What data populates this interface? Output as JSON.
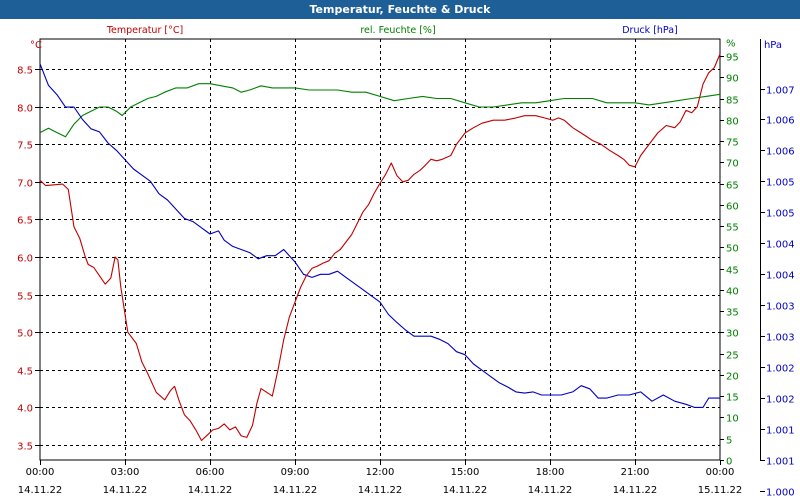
{
  "title": "Temperatur, Feuchte & Druck",
  "colors": {
    "temperature": "#c00000",
    "humidity": "#008000",
    "pressure": "#0000c0",
    "title_bg": "#1f5f97"
  },
  "chart_data": {
    "type": "line",
    "title": "Temperatur, Feuchte & Druck",
    "x_ticks": [
      {
        "time": "00:00",
        "date": "14.11.22",
        "h": 0
      },
      {
        "time": "03:00",
        "date": "14.11.22",
        "h": 3
      },
      {
        "time": "06:00",
        "date": "14.11.22",
        "h": 6
      },
      {
        "time": "09:00",
        "date": "14.11.22",
        "h": 9
      },
      {
        "time": "12:00",
        "date": "14.11.22",
        "h": 12
      },
      {
        "time": "15:00",
        "date": "14.11.22",
        "h": 15
      },
      {
        "time": "18:00",
        "date": "14.11.22",
        "h": 18
      },
      {
        "time": "21:00",
        "date": "14.11.22",
        "h": 21
      },
      {
        "time": "00:00",
        "date": "15.11.22",
        "h": 24
      }
    ],
    "temperature": {
      "name": "Temperatur [°C]",
      "unit": "°C",
      "ylim": [
        3.3,
        8.9
      ],
      "ticks": [
        "3.5",
        "4.0",
        "4.5",
        "5.0",
        "5.5",
        "6.0",
        "6.5",
        "7.0",
        "7.5",
        "8.0",
        "8.5"
      ],
      "points": [
        [
          0,
          7.02
        ],
        [
          0.2,
          6.95
        ],
        [
          0.5,
          6.96
        ],
        [
          0.8,
          6.97
        ],
        [
          1.0,
          6.9
        ],
        [
          1.2,
          6.4
        ],
        [
          1.4,
          6.25
        ],
        [
          1.6,
          6.0
        ],
        [
          1.7,
          5.9
        ],
        [
          1.9,
          5.86
        ],
        [
          2.1,
          5.75
        ],
        [
          2.3,
          5.64
        ],
        [
          2.5,
          5.72
        ],
        [
          2.65,
          6.0
        ],
        [
          2.75,
          5.96
        ],
        [
          2.85,
          5.6
        ],
        [
          3.1,
          5.0
        ],
        [
          3.4,
          4.85
        ],
        [
          3.6,
          4.6
        ],
        [
          3.8,
          4.45
        ],
        [
          4.1,
          4.2
        ],
        [
          4.4,
          4.1
        ],
        [
          4.6,
          4.22
        ],
        [
          4.75,
          4.28
        ],
        [
          4.9,
          4.1
        ],
        [
          5.1,
          3.9
        ],
        [
          5.3,
          3.82
        ],
        [
          5.5,
          3.7
        ],
        [
          5.7,
          3.56
        ],
        [
          5.9,
          3.63
        ],
        [
          6.1,
          3.7
        ],
        [
          6.3,
          3.72
        ],
        [
          6.5,
          3.78
        ],
        [
          6.7,
          3.7
        ],
        [
          6.9,
          3.74
        ],
        [
          7.1,
          3.62
        ],
        [
          7.3,
          3.6
        ],
        [
          7.5,
          3.76
        ],
        [
          7.65,
          4.05
        ],
        [
          7.8,
          4.25
        ],
        [
          8.0,
          4.2
        ],
        [
          8.2,
          4.15
        ],
        [
          8.4,
          4.5
        ],
        [
          8.6,
          4.9
        ],
        [
          8.8,
          5.2
        ],
        [
          9.0,
          5.4
        ],
        [
          9.2,
          5.6
        ],
        [
          9.4,
          5.75
        ],
        [
          9.6,
          5.85
        ],
        [
          9.8,
          5.88
        ],
        [
          10.0,
          5.92
        ],
        [
          10.2,
          5.95
        ],
        [
          10.4,
          6.05
        ],
        [
          10.6,
          6.1
        ],
        [
          10.8,
          6.2
        ],
        [
          11.0,
          6.3
        ],
        [
          11.2,
          6.45
        ],
        [
          11.4,
          6.6
        ],
        [
          11.6,
          6.7
        ],
        [
          11.8,
          6.85
        ],
        [
          12.0,
          6.98
        ],
        [
          12.2,
          7.1
        ],
        [
          12.4,
          7.25
        ],
        [
          12.6,
          7.08
        ],
        [
          12.8,
          7.0
        ],
        [
          13.0,
          7.02
        ],
        [
          13.2,
          7.1
        ],
        [
          13.4,
          7.15
        ],
        [
          13.6,
          7.22
        ],
        [
          13.8,
          7.3
        ],
        [
          14.0,
          7.28
        ],
        [
          14.2,
          7.3
        ],
        [
          14.5,
          7.35
        ],
        [
          14.7,
          7.5
        ],
        [
          15.0,
          7.65
        ],
        [
          15.3,
          7.72
        ],
        [
          15.6,
          7.78
        ],
        [
          16.0,
          7.82
        ],
        [
          16.4,
          7.82
        ],
        [
          16.8,
          7.85
        ],
        [
          17.1,
          7.88
        ],
        [
          17.5,
          7.88
        ],
        [
          17.8,
          7.85
        ],
        [
          18.1,
          7.82
        ],
        [
          18.3,
          7.85
        ],
        [
          18.5,
          7.82
        ],
        [
          18.8,
          7.72
        ],
        [
          19.1,
          7.65
        ],
        [
          19.5,
          7.55
        ],
        [
          19.8,
          7.5
        ],
        [
          20.1,
          7.42
        ],
        [
          20.4,
          7.35
        ],
        [
          20.6,
          7.3
        ],
        [
          20.8,
          7.22
        ],
        [
          21.0,
          7.2
        ],
        [
          21.2,
          7.35
        ],
        [
          21.4,
          7.45
        ],
        [
          21.6,
          7.55
        ],
        [
          21.8,
          7.65
        ],
        [
          22.1,
          7.75
        ],
        [
          22.4,
          7.72
        ],
        [
          22.6,
          7.8
        ],
        [
          22.8,
          7.95
        ],
        [
          23.0,
          7.92
        ],
        [
          23.2,
          8.0
        ],
        [
          23.4,
          8.3
        ],
        [
          23.6,
          8.45
        ],
        [
          23.8,
          8.52
        ],
        [
          24.0,
          8.7
        ]
      ]
    },
    "humidity": {
      "name": "rel. Feuchte [%]",
      "unit": "%",
      "ylim": [
        0,
        99
      ],
      "ticks": [
        "0",
        "5",
        "10",
        "15",
        "20",
        "25",
        "30",
        "35",
        "40",
        "45",
        "50",
        "55",
        "60",
        "65",
        "70",
        "75",
        "80",
        "85",
        "90",
        "95",
        "%"
      ],
      "points": [
        [
          0,
          77
        ],
        [
          0.3,
          78
        ],
        [
          0.6,
          77
        ],
        [
          0.9,
          76
        ],
        [
          1.2,
          79
        ],
        [
          1.5,
          81
        ],
        [
          1.8,
          82
        ],
        [
          2.1,
          83
        ],
        [
          2.4,
          83
        ],
        [
          2.7,
          82
        ],
        [
          2.9,
          81
        ],
        [
          3.2,
          83
        ],
        [
          3.5,
          84
        ],
        [
          3.8,
          85
        ],
        [
          4.1,
          85.5
        ],
        [
          4.4,
          86.5
        ],
        [
          4.8,
          87.5
        ],
        [
          5.2,
          87.5
        ],
        [
          5.6,
          88.5
        ],
        [
          6.0,
          88.5
        ],
        [
          6.4,
          88
        ],
        [
          6.8,
          87.5
        ],
        [
          7.1,
          86.5
        ],
        [
          7.4,
          87
        ],
        [
          7.8,
          88
        ],
        [
          8.2,
          87.5
        ],
        [
          8.6,
          87.5
        ],
        [
          9.0,
          87.5
        ],
        [
          9.5,
          87
        ],
        [
          10,
          87
        ],
        [
          10.5,
          87
        ],
        [
          11,
          86.5
        ],
        [
          11.5,
          86.5
        ],
        [
          12,
          85.5
        ],
        [
          12.5,
          84.5
        ],
        [
          13,
          85
        ],
        [
          13.5,
          85.5
        ],
        [
          14,
          85
        ],
        [
          14.5,
          85
        ],
        [
          15,
          84
        ],
        [
          15.5,
          83
        ],
        [
          16,
          83
        ],
        [
          16.5,
          83.5
        ],
        [
          17,
          84
        ],
        [
          17.5,
          84
        ],
        [
          18,
          84.5
        ],
        [
          18.5,
          85
        ],
        [
          19,
          85
        ],
        [
          19.5,
          85
        ],
        [
          20,
          84
        ],
        [
          20.5,
          84
        ],
        [
          21,
          84
        ],
        [
          21.5,
          83.5
        ],
        [
          22,
          84
        ],
        [
          22.5,
          84.5
        ],
        [
          23,
          85
        ],
        [
          23.5,
          85.5
        ],
        [
          24,
          86
        ]
      ]
    },
    "pressure": {
      "name": "Druck [hPa]",
      "unit": "hPa",
      "ylim": [
        1000.5,
        1007.3
      ],
      "ticks": [
        "1.000",
        "1.001",
        "1.001",
        "1.002",
        "1.002",
        "1.003",
        "1.003",
        "1.004",
        "1.004",
        "1.005",
        "1.005",
        "1.006",
        "1.006",
        "1.007"
      ],
      "points": [
        [
          0,
          1006.9
        ],
        [
          0.3,
          1006.55
        ],
        [
          0.6,
          1006.4
        ],
        [
          0.9,
          1006.2
        ],
        [
          1.2,
          1006.2
        ],
        [
          1.5,
          1006.0
        ],
        [
          1.8,
          1005.85
        ],
        [
          2.1,
          1005.8
        ],
        [
          2.4,
          1005.62
        ],
        [
          2.7,
          1005.5
        ],
        [
          3.0,
          1005.35
        ],
        [
          3.3,
          1005.2
        ],
        [
          3.6,
          1005.1
        ],
        [
          3.9,
          1005.0
        ],
        [
          4.2,
          1004.8
        ],
        [
          4.5,
          1004.7
        ],
        [
          4.8,
          1004.55
        ],
        [
          5.1,
          1004.4
        ],
        [
          5.4,
          1004.35
        ],
        [
          5.7,
          1004.25
        ],
        [
          6.0,
          1004.15
        ],
        [
          6.3,
          1004.2
        ],
        [
          6.5,
          1004.05
        ],
        [
          6.8,
          1003.95
        ],
        [
          7.1,
          1003.9
        ],
        [
          7.4,
          1003.85
        ],
        [
          7.7,
          1003.75
        ],
        [
          8.0,
          1003.8
        ],
        [
          8.3,
          1003.8
        ],
        [
          8.6,
          1003.9
        ],
        [
          8.8,
          1003.8
        ],
        [
          9.0,
          1003.7
        ],
        [
          9.3,
          1003.5
        ],
        [
          9.6,
          1003.45
        ],
        [
          9.9,
          1003.5
        ],
        [
          10.2,
          1003.5
        ],
        [
          10.5,
          1003.55
        ],
        [
          10.8,
          1003.45
        ],
        [
          11.1,
          1003.35
        ],
        [
          11.4,
          1003.25
        ],
        [
          11.7,
          1003.15
        ],
        [
          12.0,
          1003.05
        ],
        [
          12.3,
          1002.85
        ],
        [
          12.6,
          1002.72
        ],
        [
          12.9,
          1002.6
        ],
        [
          13.2,
          1002.5
        ],
        [
          13.5,
          1002.5
        ],
        [
          13.8,
          1002.5
        ],
        [
          14.1,
          1002.45
        ],
        [
          14.4,
          1002.38
        ],
        [
          14.7,
          1002.25
        ],
        [
          15.0,
          1002.2
        ],
        [
          15.3,
          1002.05
        ],
        [
          15.6,
          1001.95
        ],
        [
          15.9,
          1001.85
        ],
        [
          16.2,
          1001.75
        ],
        [
          16.5,
          1001.68
        ],
        [
          16.8,
          1001.6
        ],
        [
          17.1,
          1001.58
        ],
        [
          17.4,
          1001.6
        ],
        [
          17.7,
          1001.55
        ],
        [
          18.0,
          1001.55
        ],
        [
          18.4,
          1001.55
        ],
        [
          18.8,
          1001.6
        ],
        [
          19.1,
          1001.7
        ],
        [
          19.4,
          1001.65
        ],
        [
          19.7,
          1001.5
        ],
        [
          20.0,
          1001.5
        ],
        [
          20.4,
          1001.55
        ],
        [
          20.8,
          1001.55
        ],
        [
          21.2,
          1001.6
        ],
        [
          21.6,
          1001.45
        ],
        [
          22.0,
          1001.55
        ],
        [
          22.4,
          1001.45
        ],
        [
          22.8,
          1001.4
        ],
        [
          23.1,
          1001.35
        ],
        [
          23.4,
          1001.35
        ],
        [
          23.6,
          1001.5
        ],
        [
          24.0,
          1001.5
        ]
      ]
    }
  }
}
